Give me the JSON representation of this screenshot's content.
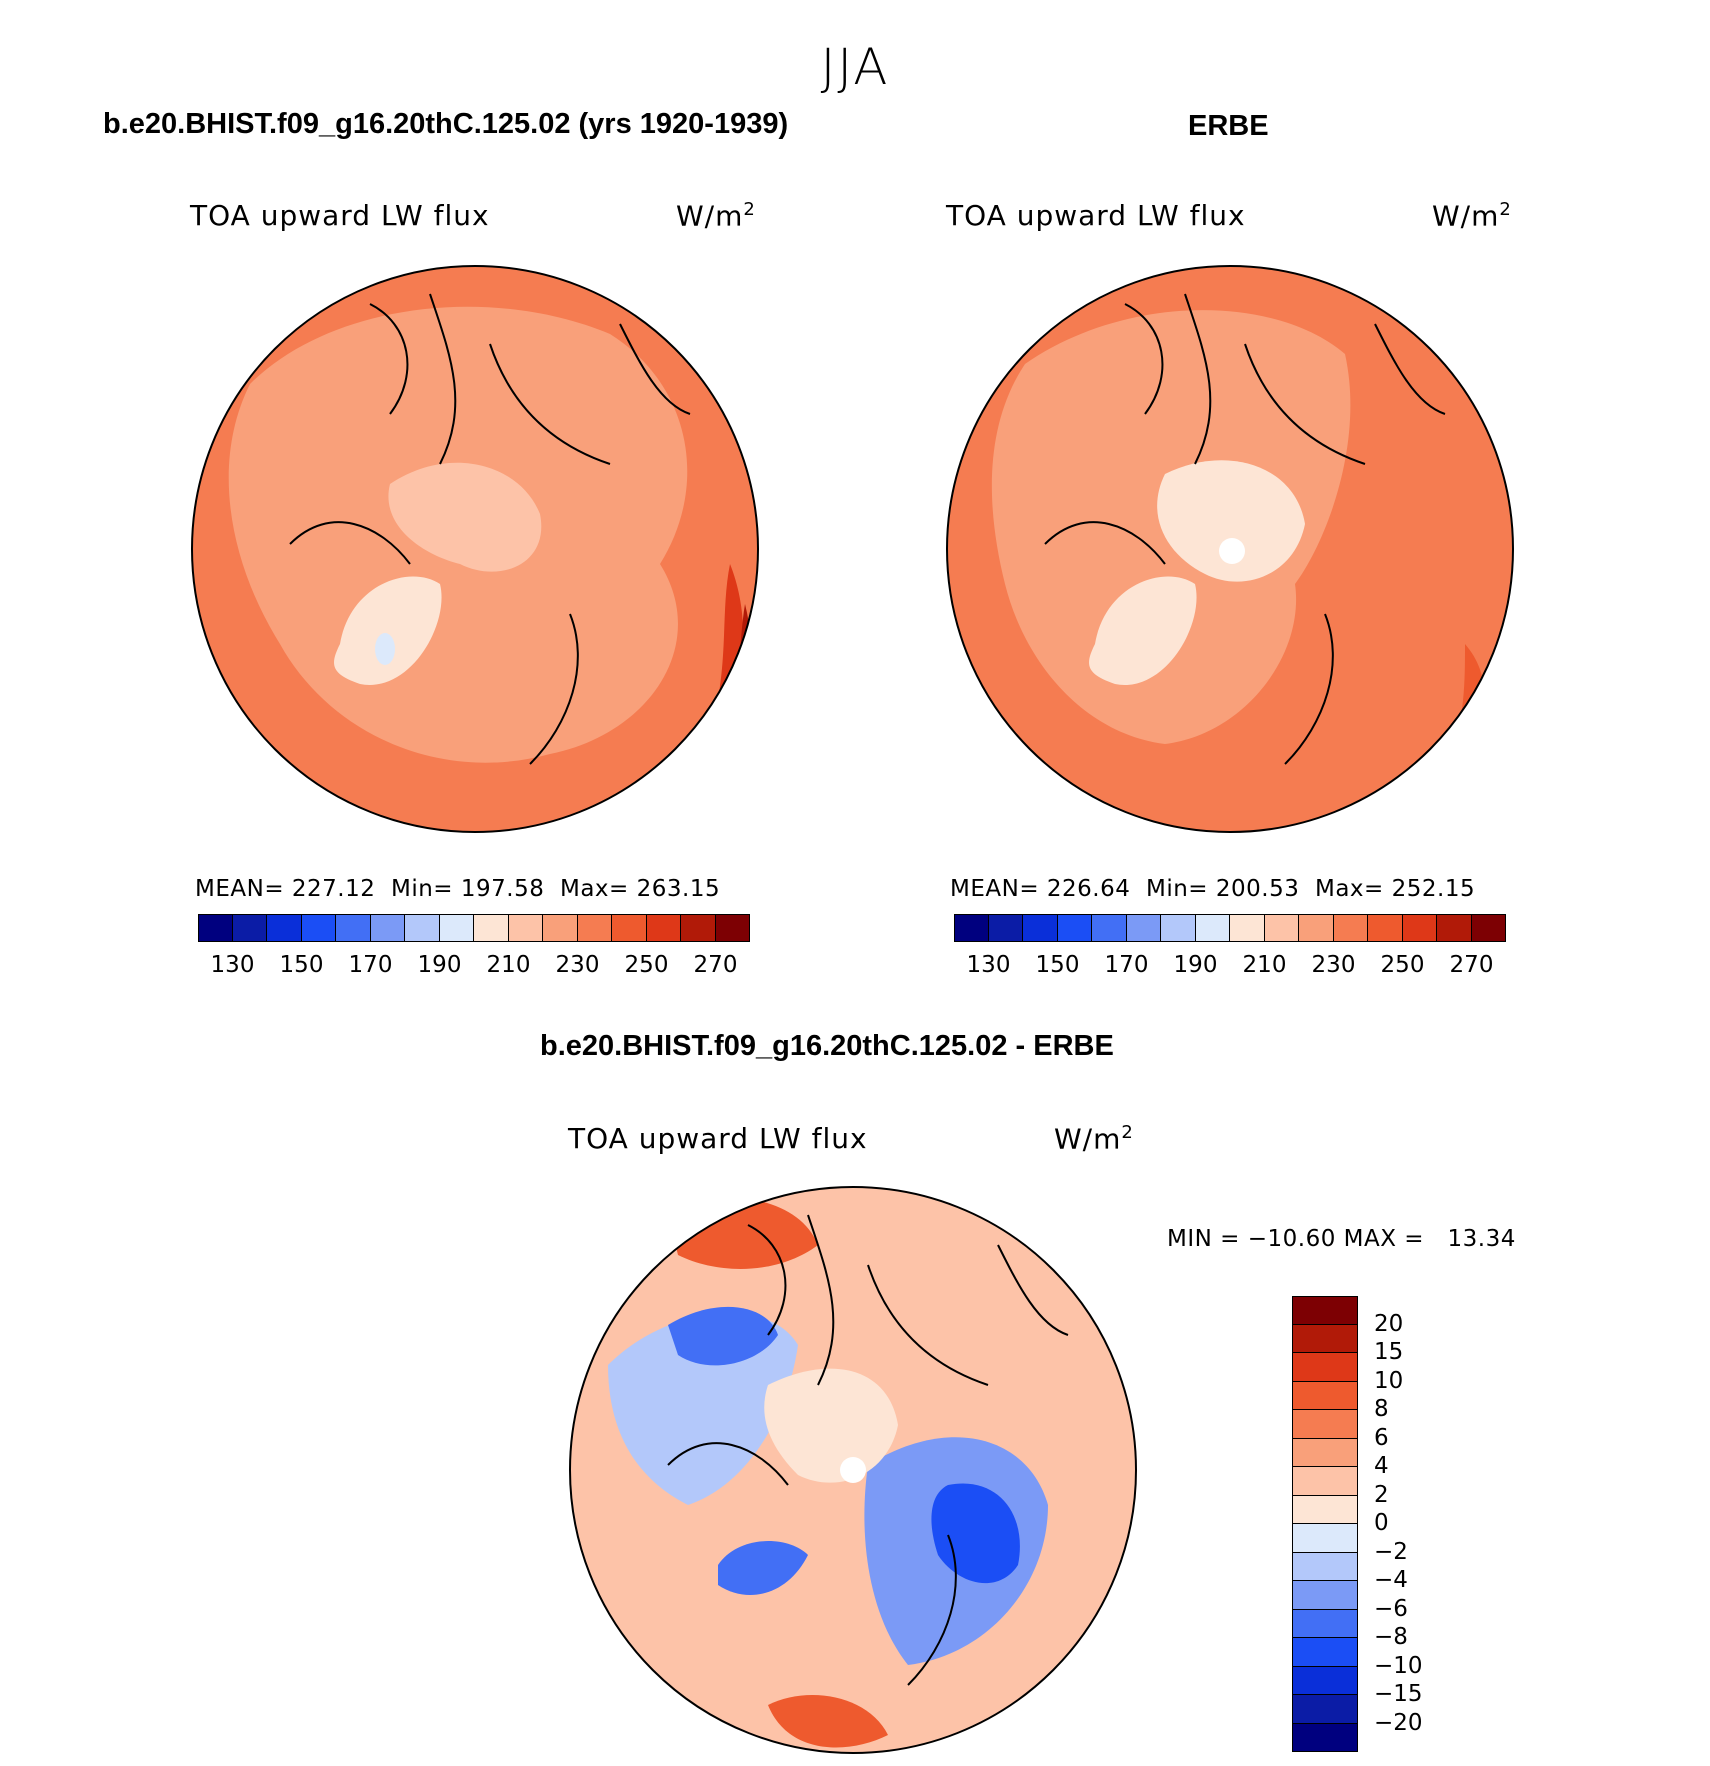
{
  "season": "JJA",
  "panels": {
    "model": {
      "case": "b.e20.BHIST.f09_g16.20thC.125.02 (yrs 1920-1939)",
      "varname": "TOA upward LW flux",
      "units_base": "W/m",
      "units_exp": "2",
      "stats": "MEAN= 227.12  Min= 197.58  Max= 263.15",
      "colorbar_ticks": [
        "130",
        "150",
        "170",
        "190",
        "210",
        "230",
        "250",
        "270"
      ]
    },
    "obs": {
      "case": "ERBE",
      "varname": "TOA upward LW flux",
      "units_base": "W/m",
      "units_exp": "2",
      "stats": "MEAN= 226.64  Min= 200.53  Max= 252.15",
      "colorbar_ticks": [
        "130",
        "150",
        "170",
        "190",
        "210",
        "230",
        "250",
        "270"
      ]
    },
    "diff": {
      "case": "b.e20.BHIST.f09_g16.20thC.125.02 - ERBE",
      "varname": "TOA upward LW flux",
      "units_base": "W/m",
      "units_exp": "2",
      "stats": "MIN = −10.60 MAX =   13.34",
      "colorbar_ticks": [
        "20",
        "15",
        "10",
        "8",
        "6",
        "4",
        "2",
        "0",
        "−2",
        "−4",
        "−6",
        "−8",
        "−10",
        "−15",
        "−20"
      ]
    }
  },
  "abs_colors": [
    "#00007f",
    "#0b1ca6",
    "#0a2fd9",
    "#1b4ef5",
    "#426ff5",
    "#7b9af6",
    "#b3c8fa",
    "#dce9fb",
    "#fde5d5",
    "#fdc3a8",
    "#f9a07a",
    "#f57c51",
    "#ee5a2e",
    "#de3818",
    "#b11a08",
    "#7d0003"
  ],
  "diff_colors": [
    "#7d0003",
    "#b11a08",
    "#de3818",
    "#ee5a2e",
    "#f57c51",
    "#f9a07a",
    "#fdc3a8",
    "#fde5d5",
    "#dce9fb",
    "#b3c8fa",
    "#7b9af6",
    "#426ff5",
    "#1b4ef5",
    "#0a2fd9",
    "#0b1ca6",
    "#00007f"
  ]
}
